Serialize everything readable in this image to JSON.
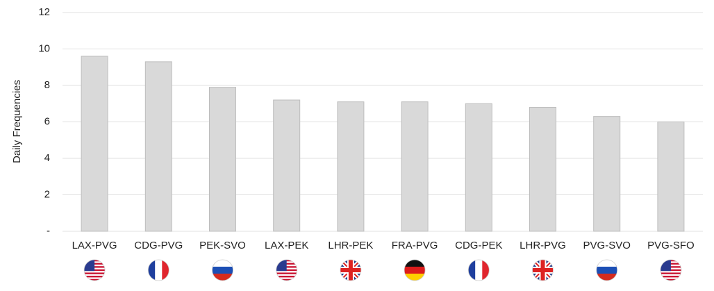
{
  "chart_data": {
    "type": "bar",
    "y_label": "Daily Frequencies",
    "categories": [
      "LAX-PVG",
      "CDG-PVG",
      "PEK-SVO",
      "LAX-PEK",
      "LHR-PEK",
      "FRA-PVG",
      "CDG-PEK",
      "LHR-PVG",
      "PVG-SVO",
      "PVG-SFO"
    ],
    "values": [
      9.6,
      9.3,
      7.9,
      7.2,
      7.1,
      7.1,
      7.0,
      6.8,
      6.3,
      6.0
    ],
    "color": "#d9d9d9",
    "ylim": [
      0,
      12
    ],
    "yticks": [
      {
        "value": 0,
        "label": "-"
      },
      2,
      4,
      6,
      8,
      10,
      12
    ],
    "grid": true
  }
}
